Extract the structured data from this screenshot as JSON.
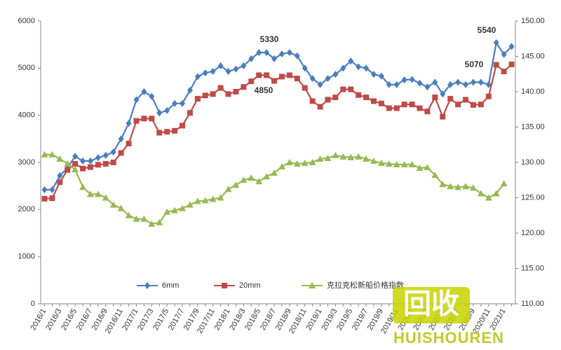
{
  "chart_data": {
    "type": "line",
    "categories": [
      "2016/1",
      null,
      "2016/3",
      null,
      "2016/5",
      null,
      "2016/7",
      null,
      "2016/9",
      null,
      "2016/11",
      null,
      "2017/1",
      null,
      "2017/3",
      null,
      "2017/5",
      null,
      "2017/7",
      null,
      "2017/9",
      null,
      "2017/11",
      null,
      "2018/1",
      null,
      "2018/3",
      null,
      "2018/5",
      null,
      "2018/7",
      null,
      "2018/9",
      null,
      "2018/11",
      null,
      "2019/1",
      null,
      "2019/3",
      null,
      "2019/5",
      null,
      "2019/7",
      null,
      "2019/9",
      null,
      "2019/11",
      null,
      "2020/1",
      null,
      "2020/3",
      null,
      "2020/5",
      null,
      "2020/7",
      null,
      "2020/9",
      null,
      "2020/11",
      null,
      "2021/1",
      null
    ],
    "series": [
      {
        "name": "6mm",
        "color": "#4a7ebb",
        "marker": "diamond",
        "values": [
          2420,
          2420,
          2720,
          2880,
          3130,
          3030,
          3030,
          3100,
          3150,
          3220,
          3500,
          3830,
          4330,
          4500,
          4400,
          4050,
          4100,
          4250,
          4250,
          4530,
          4820,
          4900,
          4930,
          5050,
          4930,
          4980,
          5050,
          5200,
          5330,
          5330,
          5200,
          5300,
          5330,
          5260,
          5000,
          4780,
          4650,
          4780,
          4870,
          5000,
          5150,
          5030,
          5000,
          4870,
          4830,
          4650,
          4650,
          4750,
          4760,
          4680,
          4600,
          4700,
          4450,
          4650,
          4700,
          4650,
          4700,
          4700,
          4650,
          5540,
          5290,
          5460
        ]
      },
      {
        "name": "20mm",
        "color": "#be4b48",
        "marker": "square",
        "values": [
          2230,
          2240,
          2580,
          2840,
          2970,
          2870,
          2900,
          2950,
          2970,
          3000,
          3200,
          3400,
          3880,
          3930,
          3930,
          3630,
          3650,
          3670,
          3780,
          4050,
          4350,
          4420,
          4450,
          4580,
          4450,
          4500,
          4600,
          4720,
          4850,
          4850,
          4730,
          4820,
          4850,
          4780,
          4580,
          4300,
          4180,
          4330,
          4380,
          4550,
          4550,
          4430,
          4380,
          4300,
          4250,
          4150,
          4150,
          4230,
          4230,
          4150,
          4080,
          4380,
          3970,
          4350,
          4230,
          4330,
          4220,
          4230,
          4400,
          5070,
          4930,
          5080
        ]
      },
      {
        "name": "克拉克松新船价格指数",
        "color": "#98b954",
        "marker": "triangle",
        "axis": "y2",
        "values": [
          131.1,
          131.1,
          130.5,
          129.8,
          129.0,
          126.5,
          125.5,
          125.5,
          125.0,
          124.0,
          123.5,
          122.5,
          122.0,
          122.0,
          121.3,
          121.5,
          123.0,
          123.2,
          123.5,
          124.0,
          124.5,
          124.6,
          124.8,
          125.0,
          126.2,
          126.8,
          127.5,
          127.8,
          127.3,
          128.0,
          128.5,
          129.4,
          130.0,
          129.8,
          129.9,
          130.0,
          130.5,
          130.6,
          131.0,
          130.8,
          130.7,
          130.8,
          130.5,
          130.2,
          129.9,
          129.8,
          129.7,
          129.7,
          129.7,
          129.2,
          129.3,
          128.2,
          126.9,
          126.6,
          126.5,
          126.6,
          126.4,
          125.6,
          125.0,
          125.6,
          127.0,
          null
        ]
      }
    ],
    "ylim": [
      0,
      6000
    ],
    "yticks": [
      0,
      1000,
      2000,
      3000,
      4000,
      5000,
      6000
    ],
    "y2lim": [
      110,
      150
    ],
    "y2ticks": [
      {
        "value": 110,
        "label": "110.00"
      },
      {
        "value": 115,
        "label": "115.00"
      },
      {
        "value": 120,
        "label": "120.00"
      },
      {
        "value": 125,
        "label": "125.00"
      },
      {
        "value": 130,
        "label": "130.00"
      },
      {
        "value": 135,
        "label": "135.00"
      },
      {
        "value": 140,
        "label": "140.00"
      },
      {
        "value": 145,
        "label": "145.00"
      },
      {
        "value": 150,
        "label": "150.00"
      }
    ],
    "annotations": [
      "5330",
      "4850",
      "5540",
      "5070"
    ],
    "grid": false,
    "legend": "bottom"
  },
  "watermark": {
    "icon": "回收",
    "text": "HUISHOUREN"
  }
}
